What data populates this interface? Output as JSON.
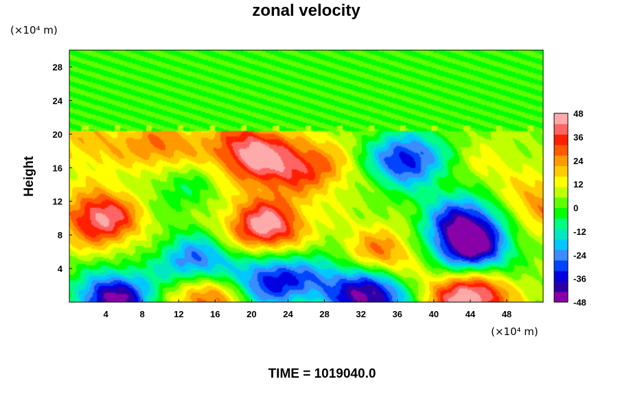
{
  "chart_data": {
    "type": "heatmap",
    "title": "zonal velocity",
    "ylabel": "Height",
    "x_unit": "(×10⁴ m)",
    "y_unit": "(×10⁴ m)",
    "xlim": [
      0,
      52
    ],
    "ylim": [
      0,
      30
    ],
    "x_ticks": [
      4,
      8,
      12,
      16,
      20,
      24,
      28,
      32,
      36,
      40,
      44,
      48
    ],
    "y_ticks": [
      4,
      8,
      12,
      16,
      20,
      24,
      28
    ],
    "colorbar": {
      "min": -48,
      "max": 48,
      "step": 6,
      "tick_labels": [
        48,
        36,
        24,
        12,
        0,
        -12,
        -24,
        -36,
        -48
      ],
      "colors": [
        "#8800a8",
        "#2c00a8",
        "#0000e0",
        "#0044ff",
        "#3a8cff",
        "#00c8ff",
        "#00e8c0",
        "#00ff80",
        "#00ff00",
        "#60ff00",
        "#c0ff00",
        "#ffff00",
        "#ffcc00",
        "#ff9900",
        "#ff5a00",
        "#ff2000",
        "#ff6464",
        "#ffaaaa"
      ]
    },
    "field": {
      "background_above_20": 0,
      "background_below_20": 6,
      "features": [
        {
          "x": 3.5,
          "y": 10,
          "value": 50
        },
        {
          "x": 21.5,
          "y": 9,
          "value": 54
        },
        {
          "x": 22,
          "y": 16.5,
          "value": 34
        },
        {
          "x": 27,
          "y": 16,
          "value": 30
        },
        {
          "x": 19,
          "y": 18.5,
          "value": 36
        },
        {
          "x": 10,
          "y": 18.5,
          "value": 32
        },
        {
          "x": 34,
          "y": 5.5,
          "value": 34
        },
        {
          "x": 15,
          "y": 1,
          "value": 44
        },
        {
          "x": 44,
          "y": 0.5,
          "value": 58
        },
        {
          "x": 2,
          "y": 19,
          "value": 22
        },
        {
          "x": 52,
          "y": 11.5,
          "value": 28
        },
        {
          "x": 14,
          "y": 4.5,
          "value": -38
        },
        {
          "x": 22,
          "y": 2.5,
          "value": -40
        },
        {
          "x": 44,
          "y": 6.5,
          "value": -52
        },
        {
          "x": 43,
          "y": 10,
          "value": -30
        },
        {
          "x": 37,
          "y": 17,
          "value": -40
        },
        {
          "x": 5,
          "y": 0.3,
          "value": -52
        },
        {
          "x": 33,
          "y": 0.8,
          "value": -52
        },
        {
          "x": 40,
          "y": 3,
          "value": 10
        },
        {
          "x": 28,
          "y": 3,
          "value": -14
        },
        {
          "x": 12,
          "y": 14,
          "value": -6
        },
        {
          "x": 46,
          "y": 16,
          "value": 14
        }
      ]
    }
  },
  "time_label": "TIME = 1019040.0"
}
